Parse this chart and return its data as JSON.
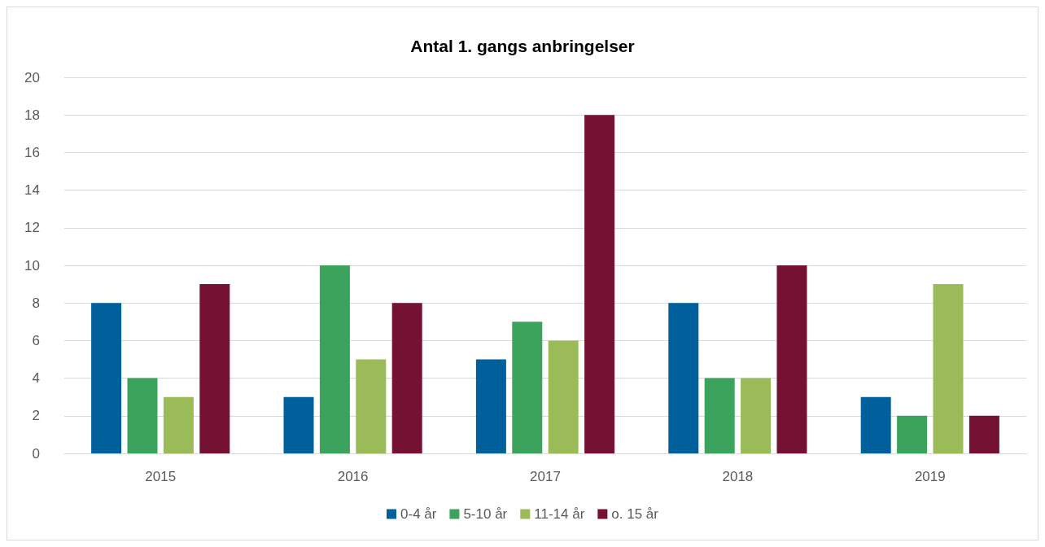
{
  "chart_data": {
    "type": "bar",
    "title": "Antal 1. gangs anbringelser",
    "categories": [
      "2015",
      "2016",
      "2017",
      "2018",
      "2019"
    ],
    "series": [
      {
        "name": "0-4 år",
        "color": "#00609c",
        "values": [
          8,
          3,
          5,
          8,
          3
        ]
      },
      {
        "name": "5-10 år",
        "color": "#3ba35b",
        "values": [
          4,
          10,
          7,
          4,
          2
        ]
      },
      {
        "name": "11-14 år",
        "color": "#9bbb59",
        "values": [
          3,
          5,
          6,
          4,
          9
        ]
      },
      {
        "name": "o. 15 år",
        "color": "#751233",
        "values": [
          9,
          8,
          18,
          10,
          2
        ]
      }
    ],
    "ylim": [
      0,
      20
    ],
    "yticks": [
      0,
      2,
      4,
      6,
      8,
      10,
      12,
      14,
      16,
      18,
      20
    ],
    "grid": "y",
    "legend": "bottom"
  }
}
